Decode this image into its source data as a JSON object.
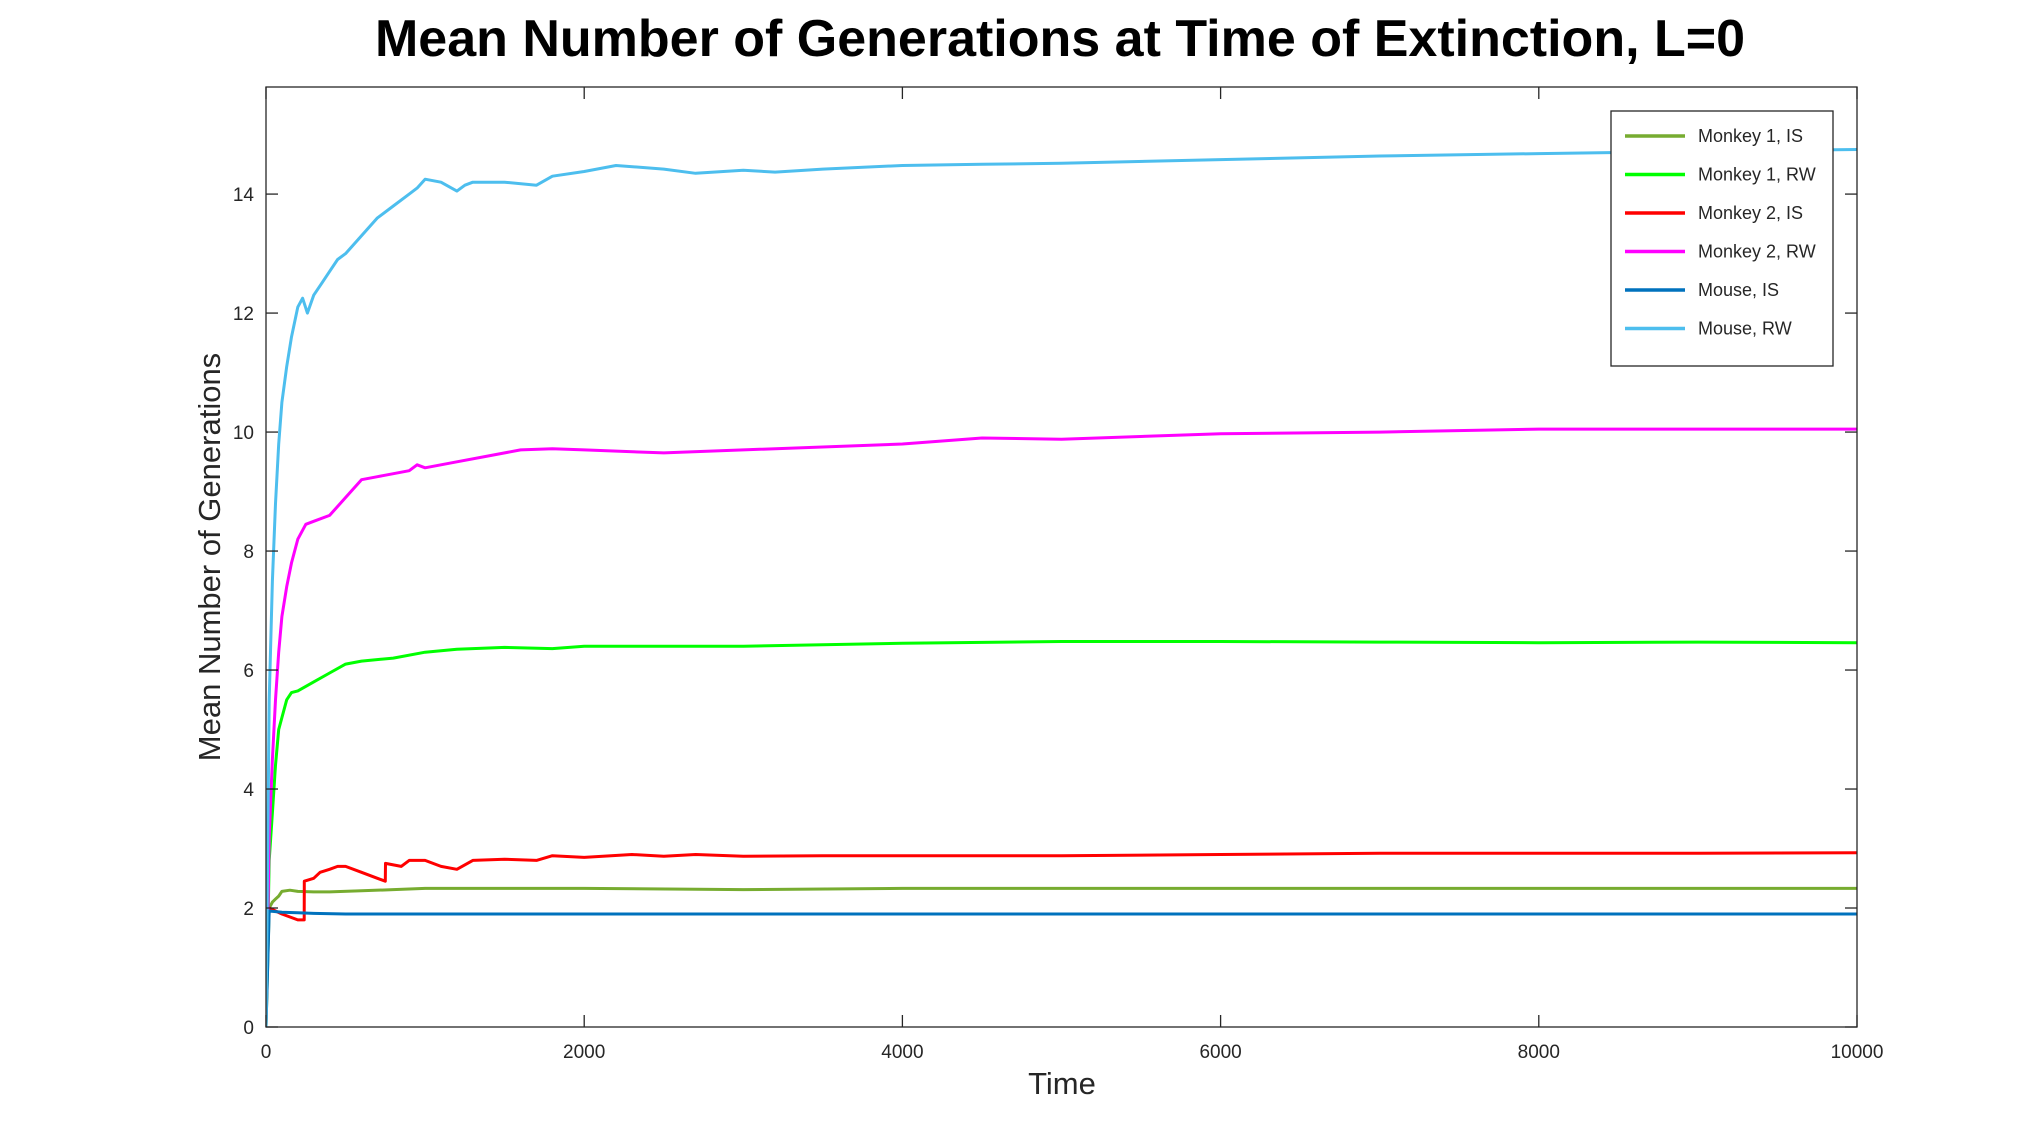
{
  "chart_data": {
    "type": "line",
    "title": "Mean Number of Generations at Time of Extinction, L=0",
    "xlabel": "Time",
    "ylabel": "Mean Number of Generations",
    "xlim": [
      0,
      10000
    ],
    "ylim": [
      0,
      15.8
    ],
    "xticks": [
      0,
      2000,
      4000,
      6000,
      8000,
      10000
    ],
    "yticks": [
      0,
      2,
      4,
      6,
      8,
      10,
      12,
      14
    ],
    "grid": false,
    "legend_position": "top-right",
    "series": [
      {
        "name": "Monkey 1, IS",
        "color": "#77ac30",
        "x": [
          0,
          20,
          40,
          60,
          80,
          100,
          150,
          200,
          300,
          400,
          600,
          800,
          1000,
          1500,
          2000,
          3000,
          4000,
          5000,
          6000,
          7000,
          8000,
          9000,
          10000
        ],
        "y": [
          0,
          2.0,
          2.1,
          2.15,
          2.2,
          2.28,
          2.3,
          2.28,
          2.27,
          2.27,
          2.29,
          2.31,
          2.33,
          2.33,
          2.33,
          2.31,
          2.33,
          2.33,
          2.33,
          2.33,
          2.33,
          2.33,
          2.33
        ]
      },
      {
        "name": "Monkey 1, RW",
        "color": "#00ff00",
        "x": [
          0,
          20,
          40,
          60,
          80,
          100,
          130,
          160,
          200,
          300,
          400,
          500,
          600,
          800,
          1000,
          1200,
          1500,
          1800,
          2000,
          2500,
          3000,
          4000,
          5000,
          6000,
          7000,
          8000,
          9000,
          10000
        ],
        "y": [
          0,
          2.8,
          3.6,
          4.4,
          5.0,
          5.2,
          5.5,
          5.62,
          5.65,
          5.8,
          5.95,
          6.1,
          6.15,
          6.2,
          6.3,
          6.35,
          6.38,
          6.36,
          6.4,
          6.4,
          6.4,
          6.45,
          6.48,
          6.48,
          6.47,
          6.46,
          6.47,
          6.46
        ]
      },
      {
        "name": "Monkey 2, IS",
        "color": "#ff0000",
        "x": [
          0,
          20,
          100,
          200,
          240,
          241,
          300,
          340,
          400,
          450,
          500,
          600,
          700,
          750,
          751,
          850,
          900,
          1000,
          1100,
          1200,
          1300,
          1500,
          1700,
          1800,
          2000,
          2300,
          2500,
          2700,
          3000,
          3500,
          4000,
          4500,
          5000,
          6000,
          7000,
          8000,
          9000,
          10000
        ],
        "y": [
          2.0,
          2.0,
          1.9,
          1.8,
          1.8,
          2.45,
          2.5,
          2.6,
          2.65,
          2.7,
          2.7,
          2.6,
          2.5,
          2.45,
          2.75,
          2.7,
          2.8,
          2.8,
          2.7,
          2.65,
          2.8,
          2.82,
          2.8,
          2.88,
          2.85,
          2.9,
          2.87,
          2.9,
          2.87,
          2.88,
          2.88,
          2.88,
          2.88,
          2.9,
          2.92,
          2.92,
          2.92,
          2.93
        ]
      },
      {
        "name": "Monkey 2, RW",
        "color": "#ff00ff",
        "x": [
          0,
          20,
          40,
          60,
          80,
          100,
          130,
          160,
          200,
          250,
          300,
          400,
          500,
          600,
          700,
          800,
          900,
          950,
          1000,
          1200,
          1400,
          1600,
          1800,
          2000,
          2500,
          3000,
          4000,
          4500,
          5000,
          6000,
          7000,
          8000,
          9000,
          10000
        ],
        "y": [
          0,
          3.2,
          4.5,
          5.5,
          6.3,
          6.9,
          7.4,
          7.8,
          8.2,
          8.45,
          8.5,
          8.6,
          8.9,
          9.2,
          9.25,
          9.3,
          9.35,
          9.45,
          9.4,
          9.5,
          9.6,
          9.7,
          9.72,
          9.7,
          9.65,
          9.7,
          9.8,
          9.9,
          9.88,
          9.97,
          10.0,
          10.05,
          10.05,
          10.05
        ]
      },
      {
        "name": "Mouse, IS",
        "color": "#0072bd",
        "x": [
          0,
          20,
          100,
          200,
          300,
          500,
          1000,
          2000,
          4000,
          6000,
          8000,
          10000
        ],
        "y": [
          0,
          1.95,
          1.93,
          1.92,
          1.91,
          1.9,
          1.9,
          1.9,
          1.9,
          1.9,
          1.9,
          1.9
        ]
      },
      {
        "name": "Mouse, RW",
        "color": "#4dbeee",
        "x": [
          0,
          20,
          40,
          60,
          80,
          100,
          130,
          160,
          200,
          230,
          260,
          300,
          350,
          400,
          450,
          500,
          600,
          700,
          800,
          900,
          950,
          1000,
          1100,
          1200,
          1250,
          1300,
          1500,
          1700,
          1800,
          2000,
          2200,
          2500,
          2700,
          3000,
          3200,
          3500,
          4000,
          4500,
          5000,
          6000,
          7000,
          8000,
          9000,
          10000
        ],
        "y": [
          0,
          5.5,
          7.5,
          8.8,
          9.8,
          10.5,
          11.1,
          11.6,
          12.1,
          12.25,
          12.0,
          12.3,
          12.5,
          12.7,
          12.9,
          13.0,
          13.3,
          13.6,
          13.8,
          14.0,
          14.1,
          14.25,
          14.2,
          14.05,
          14.15,
          14.2,
          14.2,
          14.15,
          14.3,
          14.38,
          14.48,
          14.42,
          14.35,
          14.4,
          14.37,
          14.42,
          14.48,
          14.5,
          14.52,
          14.58,
          14.64,
          14.68,
          14.72,
          14.75
        ]
      }
    ]
  }
}
